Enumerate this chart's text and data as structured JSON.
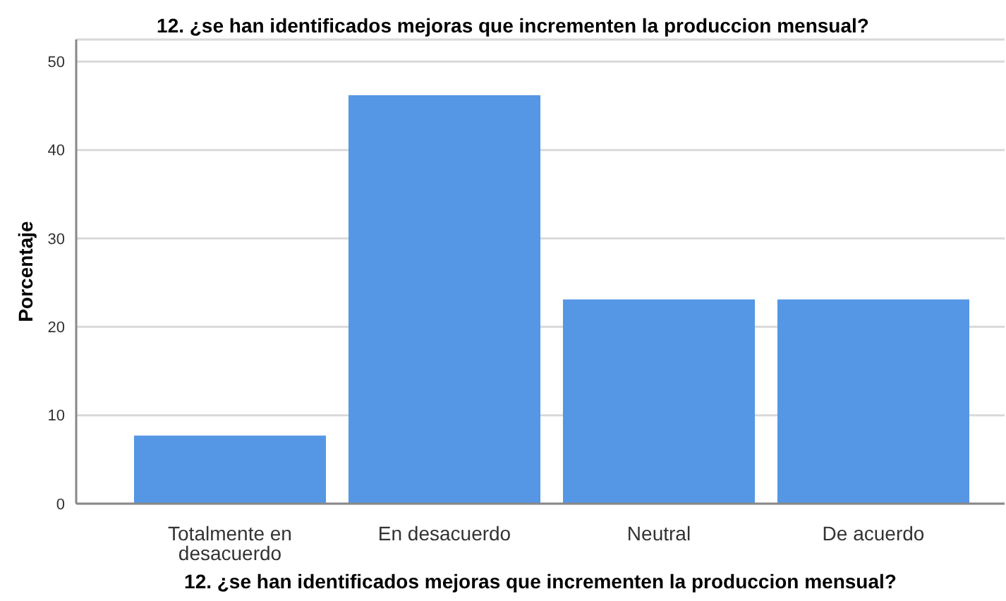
{
  "chart_data": {
    "type": "bar",
    "title": "12. ¿se han identificados mejoras que incrementen la produccion mensual?",
    "xlabel": "12. ¿se han identificados mejoras que incrementen la produccion mensual?",
    "ylabel": "Porcentaje",
    "categories": [
      "Totalmente en desacuerdo",
      "En desacuerdo",
      "Neutral",
      "De acuerdo"
    ],
    "values": [
      7.7,
      46.2,
      23.1,
      23.1
    ],
    "color": "#5596e5",
    "ylim": [
      0,
      52.5
    ],
    "yticks": [
      0,
      10,
      20,
      30,
      40,
      50
    ],
    "grid": "y"
  }
}
